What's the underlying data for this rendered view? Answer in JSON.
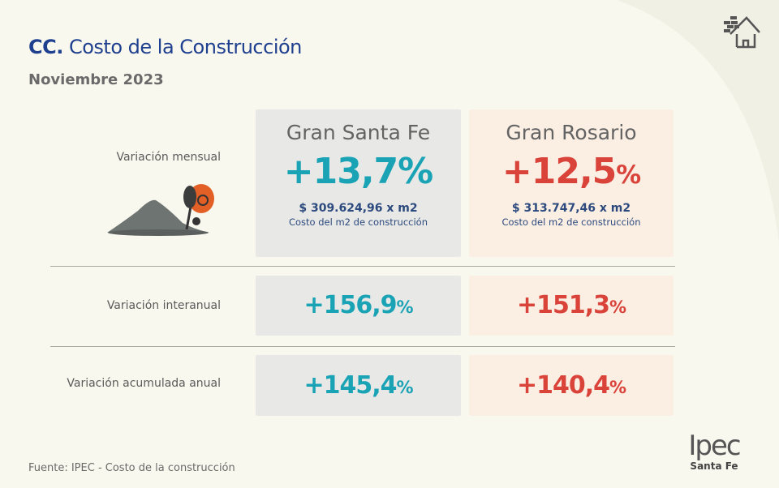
{
  "header": {
    "title_prefix": "CC.",
    "title": "Costo de la Construcción",
    "subtitle": "Noviembre 2023"
  },
  "rows": [
    {
      "label": "Variación mensual"
    },
    {
      "label": "Variación interanual"
    },
    {
      "label": "Variación acumulada anual"
    }
  ],
  "regions": [
    {
      "name": "Gran Santa Fe",
      "color": "#1aa3b5",
      "mensual": "+13,7",
      "interanual": "+156,9",
      "acumulada": "+145,4",
      "price": "$ 309.624,96 x m2",
      "price_label": "Costo del m2 de construcción"
    },
    {
      "name": "Gran Rosario",
      "color": "#d9433a",
      "mensual": "+12,5",
      "interanual": "+151,3",
      "acumulada": "+140,4",
      "price": "$ 313.747,46 x m2",
      "price_label": "Costo del m2 de construcción"
    }
  ],
  "pct": "%",
  "footer": {
    "source": "Fuente: IPEC - Costo de la construcción",
    "logo": "Ipec",
    "logo_sub": "Santa Fe"
  },
  "icons": [
    "house-bricks-icon",
    "cement-mixer-illustration"
  ]
}
